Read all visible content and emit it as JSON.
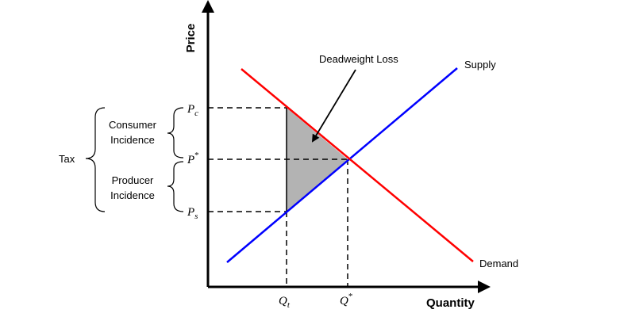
{
  "axes": {
    "y_title": "Price",
    "x_title": "Quantity"
  },
  "curves": {
    "supply_label": "Supply",
    "demand_label": "Demand",
    "supply_color": "#0000ff",
    "demand_color": "#ff0000"
  },
  "annotations": {
    "deadweight_loss": "Deadweight Loss",
    "dwl_fill": "#b3b3b3"
  },
  "braces": {
    "tax": "Tax",
    "consumer_line1": "Consumer",
    "consumer_line2": "Incidence",
    "producer_line1": "Producer",
    "producer_line2": "Incidence"
  },
  "price_ticks": {
    "pc_main": "P",
    "pc_sub": "c",
    "pstar_main": "P",
    "pstar_sup": "*",
    "ps_main": "P",
    "ps_sub": "s"
  },
  "quantity_ticks": {
    "qt_main": "Q",
    "qt_sub": "t",
    "qstar_main": "Q",
    "qstar_sup": "*"
  }
}
